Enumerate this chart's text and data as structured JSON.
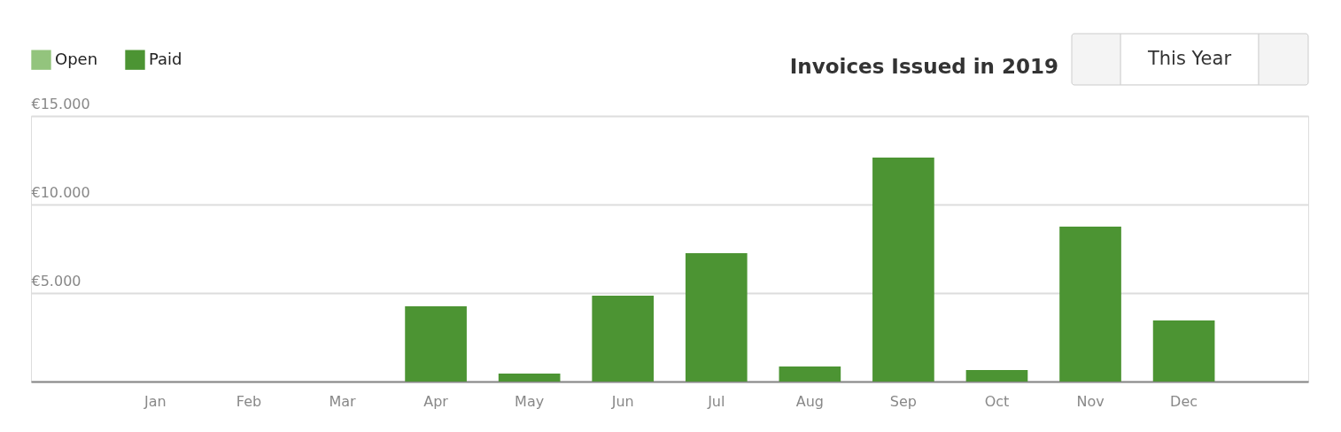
{
  "chart_data": {
    "type": "bar",
    "title": "Invoices Issued in 2019",
    "categories": [
      "Jan",
      "Feb",
      "Mar",
      "Apr",
      "May",
      "Jun",
      "Jul",
      "Aug",
      "Sep",
      "Oct",
      "Nov",
      "Dec"
    ],
    "series": [
      {
        "name": "Open",
        "color": "#93c47d",
        "values": [
          0,
          0,
          0,
          0,
          0,
          0,
          0,
          0,
          0,
          0,
          0,
          0
        ]
      },
      {
        "name": "Paid",
        "color": "#4c9433",
        "values": [
          0,
          0,
          0,
          4250,
          450,
          4850,
          7250,
          850,
          12650,
          650,
          8750,
          3450
        ]
      }
    ],
    "ylim": [
      0,
      15000
    ],
    "yticks": [
      {
        "value": 0,
        "label": null
      },
      {
        "value": 5000,
        "label": "€5.000"
      },
      {
        "value": 10000,
        "label": "€10.000"
      },
      {
        "value": 15000,
        "label": "€15.000"
      }
    ],
    "grid": "y",
    "legend": "top left",
    "annotations": [
      "This Year"
    ]
  }
}
